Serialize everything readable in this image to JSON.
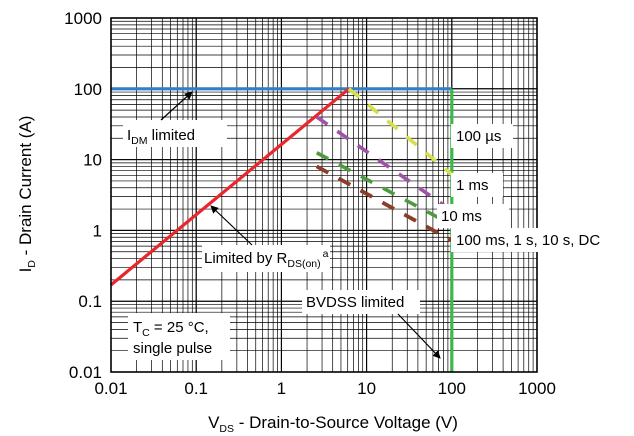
{
  "chart_data": {
    "type": "line",
    "title": "",
    "xlabel": {
      "main": "V",
      "sub": "DS",
      "rest": " - Drain-to-Source Voltage (V)"
    },
    "ylabel": {
      "main": "I",
      "sub": "D",
      "rest": " - Drain Current (A)"
    },
    "x_scale": "log",
    "y_scale": "log",
    "xlim": [
      0.01,
      1000
    ],
    "ylim": [
      0.01,
      1000
    ],
    "grid": true,
    "x_ticks": [
      0.01,
      0.1,
      1,
      10,
      100,
      1000
    ],
    "x_tick_labels": [
      "0.01",
      "0.1",
      "1",
      "10",
      "100",
      "1000"
    ],
    "y_ticks": [
      0.01,
      0.1,
      1,
      10,
      100,
      1000
    ],
    "y_tick_labels": [
      "0.01",
      "0.1",
      "1",
      "10",
      "100",
      "1000"
    ],
    "series": [
      {
        "key": "idm",
        "color": "#2f7fc4",
        "style": "solid",
        "points": [
          [
            0.01,
            100
          ],
          [
            100,
            100
          ]
        ]
      },
      {
        "key": "rdson",
        "color": "#e8262b",
        "style": "solid",
        "points": [
          [
            0.01,
            0.17
          ],
          [
            6.2,
            100
          ]
        ]
      },
      {
        "key": "bvdss",
        "color": "#3cb84a",
        "style": "solid",
        "points": [
          [
            100,
            0.01
          ],
          [
            100,
            100
          ]
        ]
      },
      {
        "key": "t100us",
        "color": "#d6e04a",
        "style": "dashed",
        "points": [
          [
            6.2,
            100
          ],
          [
            100,
            6.2
          ]
        ]
      },
      {
        "key": "t1ms",
        "color": "#a052a8",
        "style": "dashed",
        "points": [
          [
            2.6,
            40
          ],
          [
            100,
            1.9
          ]
        ]
      },
      {
        "key": "t10ms",
        "color": "#4e9a3e",
        "style": "dashed",
        "points": [
          [
            2.6,
            12.5
          ],
          [
            100,
            1.2
          ]
        ]
      },
      {
        "key": "t100ms",
        "color": "#4fc3e8",
        "style": "dashed",
        "points": [
          [
            2.6,
            8
          ],
          [
            100,
            0.72
          ]
        ]
      },
      {
        "key": "t1s",
        "color": "#e8733a",
        "style": "dashed",
        "points": [
          [
            2.6,
            8
          ],
          [
            100,
            0.72
          ]
        ]
      },
      {
        "key": "t10s",
        "color": "#7a2c10",
        "style": "dashed",
        "points": [
          [
            2.6,
            8
          ],
          [
            100,
            0.72
          ]
        ]
      },
      {
        "key": "tdc",
        "color": "#8b3d2a",
        "style": "dashed",
        "points": [
          [
            2.6,
            8
          ],
          [
            100,
            0.72
          ]
        ]
      }
    ],
    "annotations": {
      "idm": {
        "main": "I",
        "sub": "DM",
        "rest": " limited"
      },
      "t100us": "100 µs",
      "t1ms": "1 ms",
      "t10ms": "10 ms",
      "t100ms_dc": "100 ms, 1 s, 10 s, DC",
      "rdson": {
        "main": "Limited by R",
        "sub": "DS(on)",
        "sup": "a"
      },
      "bvdss": "BVDSS limited",
      "conditions_line1": {
        "main": "T",
        "sub": "C",
        "rest": " = 25 °C,"
      },
      "conditions_line2": "single pulse"
    }
  }
}
